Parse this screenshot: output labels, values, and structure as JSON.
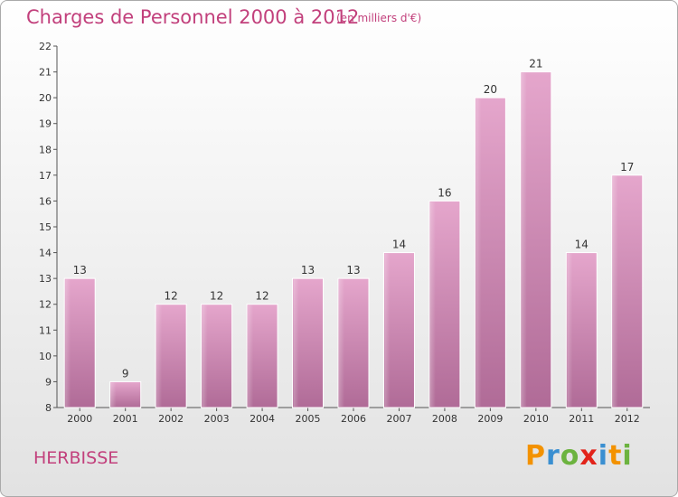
{
  "chart_data": {
    "type": "bar",
    "title": "Charges de Personnel 2000 à 2012",
    "subtitle": "(en milliers d'€)",
    "categories": [
      "2000",
      "2001",
      "2002",
      "2003",
      "2004",
      "2005",
      "2006",
      "2007",
      "2008",
      "2009",
      "2010",
      "2011",
      "2012"
    ],
    "values": [
      13,
      9,
      12,
      12,
      12,
      13,
      13,
      14,
      16,
      20,
      21,
      14,
      17
    ],
    "ylim": [
      8,
      22
    ],
    "yticks": [
      8,
      9,
      10,
      11,
      12,
      13,
      14,
      15,
      16,
      17,
      18,
      19,
      20,
      21,
      22
    ],
    "grid": false,
    "bar_color": "#d67fb0"
  },
  "footer": {
    "commune": "HERBISSE",
    "logo_letters": [
      "P",
      "r",
      "o",
      "x",
      "i",
      "t",
      "i"
    ],
    "logo_colors": [
      "#f39200",
      "#3a8fd1",
      "#6cb33f",
      "#e2231a",
      "#3a8fd1",
      "#f39200",
      "#6cb33f"
    ]
  }
}
